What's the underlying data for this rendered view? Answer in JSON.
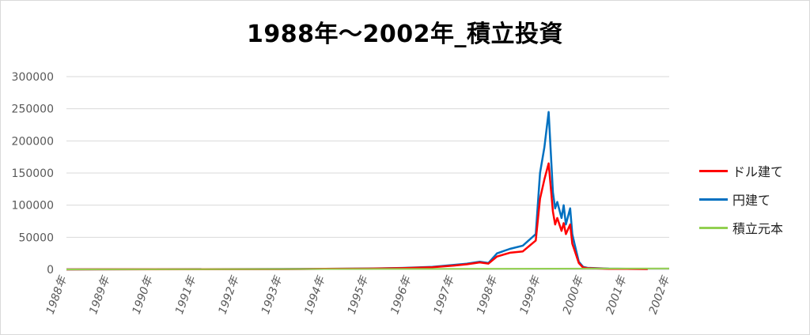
{
  "chart_data": {
    "type": "line",
    "title": "1988年～2002年_積立投資",
    "ylim": [
      0,
      300000
    ],
    "y_ticks": [
      "300000",
      "250000",
      "200000",
      "150000",
      "100000",
      "50000",
      "0"
    ],
    "y_tick_values": [
      300000,
      250000,
      200000,
      150000,
      100000,
      50000,
      0
    ],
    "x_ticks": [
      "1988年",
      "1989年",
      "1990年",
      "1991年",
      "1992年",
      "1993年",
      "1994年",
      "1995年",
      "1996年",
      "1997年",
      "1998年",
      "1999年",
      "2000年",
      "2001年",
      "2002年"
    ],
    "x_range": [
      1988,
      2002
    ],
    "grid": true,
    "legend_position": "right",
    "series": [
      {
        "name": "ドル建て",
        "color": "#ff0000",
        "x": [
          1988.0,
          1993.0,
          1994.0,
          1995.0,
          1995.8,
          1996.5,
          1997.0,
          1997.3,
          1997.6,
          1997.8,
          1998.0,
          1998.3,
          1998.6,
          1998.9,
          1999.0,
          1999.1,
          1999.2,
          1999.3,
          1999.35,
          1999.4,
          1999.5,
          1999.55,
          1999.6,
          1999.7,
          1999.75,
          1999.8,
          1999.9,
          2000.0,
          2000.1,
          2000.3,
          2000.6,
          2001.0,
          2001.5
        ],
        "y": [
          0,
          500,
          800,
          1200,
          2000,
          3500,
          6000,
          8000,
          11000,
          9000,
          20000,
          26000,
          28000,
          45000,
          110000,
          140000,
          165000,
          90000,
          70000,
          80000,
          60000,
          72000,
          55000,
          70000,
          40000,
          30000,
          10000,
          3000,
          2000,
          1500,
          1000,
          800,
          600
        ]
      },
      {
        "name": "円建て",
        "color": "#0070c0",
        "x": [
          1988.0,
          1993.0,
          1994.0,
          1995.0,
          1995.8,
          1996.5,
          1997.0,
          1997.3,
          1997.6,
          1997.8,
          1998.0,
          1998.3,
          1998.6,
          1998.9,
          1999.0,
          1999.1,
          1999.2,
          1999.3,
          1999.35,
          1999.4,
          1999.5,
          1999.55,
          1999.6,
          1999.7,
          1999.75,
          1999.8,
          1999.9,
          2000.0,
          2000.1,
          2000.3,
          2000.6,
          2001.0,
          2001.5
        ],
        "y": [
          0,
          600,
          900,
          1400,
          2300,
          4000,
          7000,
          9000,
          12000,
          10000,
          25000,
          32000,
          37000,
          55000,
          150000,
          190000,
          245000,
          120000,
          95000,
          105000,
          80000,
          100000,
          70000,
          95000,
          55000,
          40000,
          12000,
          4000,
          2500,
          2000,
          1200,
          900,
          700
        ]
      },
      {
        "name": "積立元本",
        "color": "#92d050",
        "x": [
          1988.0,
          2002.0
        ],
        "y": [
          0,
          1500
        ]
      }
    ]
  }
}
